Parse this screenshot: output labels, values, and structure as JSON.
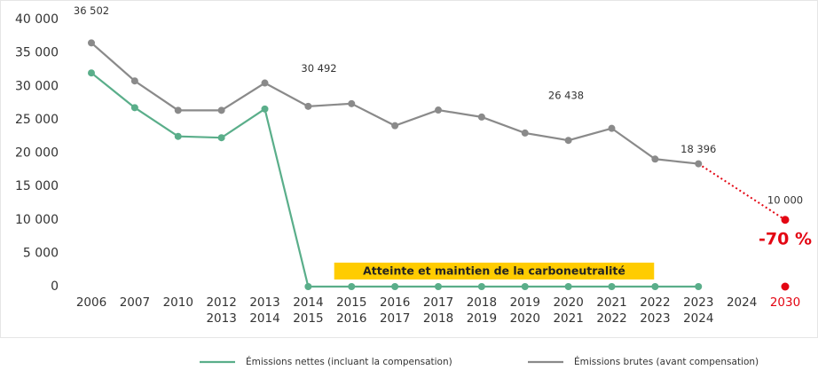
{
  "chart_data": {
    "type": "line",
    "categories": [
      "2006",
      "2007",
      "2010",
      "2012\n2013",
      "2013\n2014",
      "2014\n2015",
      "2015\n2016",
      "2016\n2017",
      "2017\n2018",
      "2018\n2019",
      "2019\n2020",
      "2020\n2021",
      "2021\n2022",
      "2022\n2023",
      "2023\n2024",
      "2024",
      "2030"
    ],
    "series": [
      {
        "name": "Émissions nettes (incluant la compensation)",
        "color": "#5aae8a",
        "values": [
          32000,
          26800,
          22500,
          22300,
          26600,
          0,
          0,
          0,
          0,
          0,
          0,
          0,
          0,
          0,
          0,
          null,
          0
        ]
      },
      {
        "name": "Émissions brutes (avant compensation)",
        "color": "#8a8a8a",
        "values": [
          36502,
          30800,
          26400,
          26400,
          30492,
          27000,
          27400,
          24100,
          26438,
          25400,
          23000,
          21900,
          23700,
          19100,
          18396,
          null,
          10000
        ],
        "value_labels": [
          "36 502",
          null,
          null,
          null,
          "30 492",
          null,
          null,
          null,
          "26 438",
          null,
          null,
          null,
          null,
          null,
          "18 396",
          null,
          "10 000"
        ]
      }
    ],
    "highlight_color": "#e30613",
    "annotation": "-70 %",
    "banner": "Atteinte et maintien de la carboneutralité",
    "banner_color": "#ffcc00",
    "ylim": [
      0,
      40000
    ],
    "yticks": [
      0,
      {
        "value": 5000,
        "label": "5 000"
      },
      {
        "value": 10000,
        "label": "10 000"
      },
      {
        "value": 15000,
        "label": "15 000"
      },
      {
        "value": 20000,
        "label": "20 000"
      },
      {
        "value": 25000,
        "label": "25 000"
      },
      {
        "value": 30000,
        "label": "30 000"
      },
      {
        "value": 35000,
        "label": "35 000"
      },
      {
        "value": 40000,
        "label": "40 000"
      }
    ],
    "grid": false
  }
}
